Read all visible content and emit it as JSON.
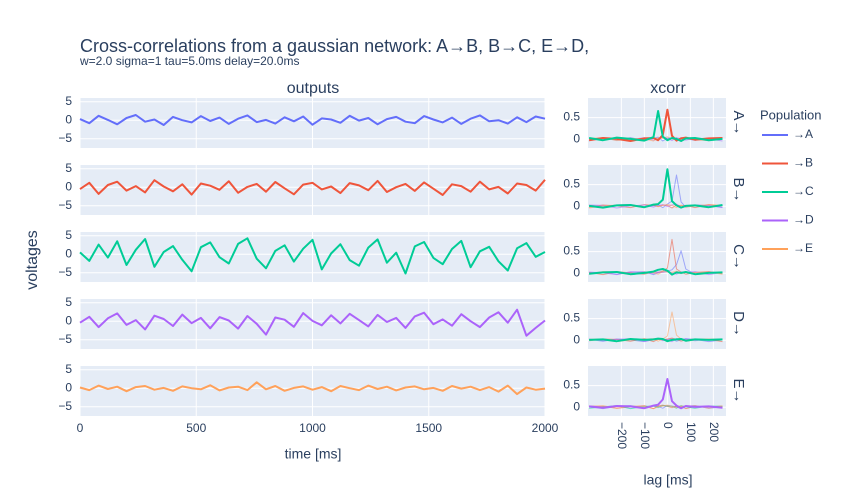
{
  "title": "Cross-correlations from a gaussian network: A→B, B→C, E→D,",
  "subtitle": "w=2.0 sigma=1 tau=5.0ms delay=20.0ms",
  "chart_data": [
    {
      "type": "line",
      "title": "outputs",
      "xlabel": "time [ms]",
      "ylabel": "voltages",
      "legend_title": "Population",
      "x": [
        0,
        40,
        80,
        120,
        160,
        200,
        240,
        280,
        320,
        360,
        400,
        440,
        480,
        520,
        560,
        600,
        640,
        680,
        720,
        760,
        800,
        840,
        880,
        920,
        960,
        1000,
        1040,
        1080,
        1120,
        1160,
        1200,
        1240,
        1280,
        1320,
        1360,
        1400,
        1440,
        1480,
        1520,
        1560,
        1600,
        1640,
        1680,
        1720,
        1760,
        1800,
        1840,
        1880,
        1920,
        1960,
        2000
      ],
      "xlim": [
        0,
        2000
      ],
      "xticks": [
        0,
        500,
        1000,
        1500,
        2000
      ],
      "ylim": [
        -7.5,
        6
      ],
      "yticks": [
        5,
        0,
        {
          "value": -5,
          "label": "−5"
        }
      ],
      "grid": true,
      "series": [
        {
          "name": "→A",
          "color": "#636efa",
          "values": [
            0.3,
            -0.8,
            1.2,
            0.1,
            -1.1,
            0.6,
            1.4,
            -0.4,
            0.2,
            -1.3,
            0.9,
            0.0,
            -0.6,
            1.1,
            -0.2,
            0.7,
            -1.0,
            0.4,
            1.3,
            -0.5,
            0.1,
            -0.9,
            0.8,
            -0.3,
            1.0,
            -1.2,
            0.5,
            0.2,
            -0.7,
            1.2,
            -0.1,
            0.6,
            -1.1,
            0.3,
            0.9,
            -0.4,
            -0.8,
            1.1,
            0.2,
            -0.6,
            0.7,
            -1.0,
            0.4,
            1.3,
            -0.3,
            0.0,
            -0.9,
            0.8,
            -0.5,
            1.0,
            0.4
          ]
        },
        {
          "name": "→B",
          "color": "#ef553b",
          "values": [
            -0.5,
            1.2,
            -1.8,
            0.6,
            1.5,
            -0.9,
            0.3,
            -1.4,
            1.9,
            0.2,
            -1.1,
            0.8,
            -2.0,
            1.0,
            0.4,
            -0.7,
            1.6,
            -1.5,
            0.1,
            0.9,
            -1.2,
            1.4,
            -0.3,
            -1.9,
            0.7,
            1.2,
            -0.6,
            0.2,
            -1.6,
            1.1,
            0.5,
            -0.8,
            1.7,
            -1.3,
            0.0,
            0.9,
            -1.0,
            1.3,
            -0.4,
            -2.1,
            0.8,
            0.3,
            -1.2,
            1.5,
            -0.6,
            0.1,
            -1.7,
            1.0,
            0.6,
            -0.9,
            2.0
          ]
        },
        {
          "name": "→C",
          "color": "#00cc96",
          "values": [
            0.5,
            -1.8,
            2.6,
            -0.9,
            3.5,
            -2.9,
            1.2,
            4.1,
            -3.4,
            0.6,
            2.2,
            -1.5,
            -4.6,
            1.9,
            3.2,
            -0.8,
            -2.5,
            2.8,
            4.3,
            -1.2,
            -3.8,
            0.9,
            2.4,
            -2.0,
            1.5,
            3.9,
            -4.1,
            0.2,
            2.7,
            -1.6,
            -3.1,
            1.8,
            4.0,
            -2.3,
            0.4,
            -5.2,
            2.1,
            3.3,
            -1.0,
            -2.7,
            1.4,
            3.6,
            -3.5,
            0.8,
            2.0,
            -1.9,
            -4.4,
            1.6,
            3.0,
            -0.7,
            0.6
          ]
        },
        {
          "name": "→D",
          "color": "#ab63fa",
          "values": [
            -0.4,
            1.2,
            -1.6,
            0.8,
            2.1,
            -1.0,
            0.3,
            -2.2,
            1.5,
            0.6,
            -1.3,
            1.8,
            -0.5,
            0.9,
            -1.9,
            1.1,
            0.2,
            -2.0,
            1.4,
            -0.7,
            -3.6,
            1.0,
            0.4,
            -1.5,
            2.2,
            0.1,
            -1.1,
            1.6,
            -0.6,
            2.0,
            0.3,
            -1.4,
            1.7,
            -0.2,
            0.9,
            -1.8,
            1.3,
            2.3,
            -0.8,
            0.5,
            -1.2,
            1.9,
            0.0,
            -1.6,
            1.0,
            2.4,
            -0.4,
            3.1,
            -3.9,
            -1.8,
            0.2
          ]
        },
        {
          "name": "→E",
          "color": "#ffa15a",
          "values": [
            0.2,
            -0.5,
            0.7,
            -0.2,
            0.4,
            -0.8,
            0.3,
            0.6,
            -0.4,
            0.1,
            -0.7,
            0.5,
            0.0,
            -0.3,
            0.8,
            -0.6,
            0.2,
            0.4,
            -0.5,
            1.6,
            -0.3,
            0.6,
            -0.7,
            0.1,
            0.5,
            -0.4,
            0.3,
            -0.8,
            0.6,
            0.0,
            -0.5,
            0.7,
            -0.2,
            0.4,
            -0.6,
            0.2,
            0.5,
            -0.3,
            0.1,
            -0.7,
            0.6,
            -0.1,
            0.4,
            -0.5,
            0.3,
            -0.9,
            0.7,
            -1.6,
            0.2,
            -0.4,
            -0.1
          ]
        }
      ]
    },
    {
      "type": "line",
      "title": "xcorr",
      "xlabel": "lag [ms]",
      "x": [
        -340,
        -280,
        -220,
        -160,
        -100,
        -60,
        -40,
        -20,
        0,
        20,
        40,
        60,
        80,
        120,
        180,
        240
      ],
      "xlim": [
        -345,
        255
      ],
      "xticks": [
        {
          "value": -200,
          "label": "−200"
        },
        {
          "value": -100,
          "label": "−100"
        },
        0,
        100,
        200
      ],
      "ylim": [
        -0.2,
        0.95
      ],
      "yticks": [
        0,
        0.5
      ],
      "grid": true,
      "panels": [
        {
          "label": "A→",
          "series": [
            {
              "values": [
                0.01,
                0.03,
                -0.02,
                0.04,
                -0.03,
                0.02,
                0.05,
                -0.04,
                0.03,
                0.02,
                -0.03,
                0.04,
                0.01,
                -0.02,
                0.03,
                0.02
              ]
            },
            {
              "bold": true,
              "values": [
                -0.02,
                0.03,
                0.01,
                -0.04,
                0.02,
                0.03,
                -0.02,
                0.1,
                0.68,
                0.08,
                -0.03,
                0.02,
                0.04,
                -0.01,
                0.02,
                0.03
              ]
            },
            {
              "bold": true,
              "values": [
                0.03,
                -0.02,
                0.04,
                0.01,
                -0.03,
                0.05,
                0.65,
                0.06,
                -0.02,
                0.03,
                0.01,
                -0.04,
                0.02,
                0.03,
                -0.02,
                0.01
              ]
            },
            {
              "values": [
                -0.03,
                0.02,
                0.03,
                -0.01,
                0.04,
                -0.02,
                0.01,
                0.05,
                0.02,
                -0.03,
                0.04,
                0.01,
                -0.02,
                0.03,
                0.01,
                -0.04
              ]
            },
            {
              "values": [
                0.02,
                0.04,
                -0.03,
                0.02,
                0.01,
                -0.04,
                0.03,
                0.02,
                0.06,
                0.01,
                -0.02,
                0.03,
                0.04,
                -0.01,
                -0.03,
                0.02
              ]
            }
          ]
        },
        {
          "label": "B→",
          "series": [
            {
              "values": [
                0.02,
                -0.01,
                0.03,
                0.04,
                -0.02,
                0.01,
                0.03,
                -0.03,
                0.05,
                0.12,
                0.72,
                0.1,
                -0.02,
                0.03,
                0.01,
                -0.02
              ]
            },
            {
              "values": [
                -0.02,
                0.03,
                0.01,
                -0.03,
                0.04,
                0.02,
                -0.01,
                0.03,
                0.02,
                -0.04,
                0.03,
                0.01,
                0.02,
                -0.03,
                0.04,
                0.01
              ]
            },
            {
              "bold": true,
              "values": [
                0.01,
                -0.03,
                0.02,
                0.03,
                -0.02,
                0.04,
                0.05,
                0.15,
                0.85,
                0.12,
                0.02,
                -0.03,
                0.01,
                0.02,
                -0.02,
                0.03
              ]
            },
            {
              "values": [
                0.03,
                0.02,
                -0.04,
                0.01,
                0.03,
                -0.02,
                0.02,
                0.04,
                -0.01,
                0.03,
                0.05,
                -0.02,
                0.01,
                0.03,
                0.02,
                -0.03
              ]
            },
            {
              "values": [
                -0.04,
                0.01,
                0.03,
                0.02,
                -0.03,
                0.05,
                -0.01,
                0.02,
                0.04,
                0.02,
                -0.03,
                0.03,
                -0.02,
                0.01,
                0.04,
                0.02
              ]
            }
          ]
        },
        {
          "label": "C→",
          "series": [
            {
              "values": [
                0.01,
                0.03,
                -0.02,
                0.02,
                0.04,
                -0.03,
                0.01,
                0.03,
                0.05,
                0.08,
                0.2,
                0.52,
                0.1,
                -0.02,
                0.03,
                0.01
              ]
            },
            {
              "values": [
                0.02,
                -0.03,
                0.04,
                0.01,
                -0.02,
                0.03,
                0.02,
                0.05,
                0.12,
                0.78,
                0.1,
                0.03,
                -0.02,
                0.02,
                0.04,
                -0.01
              ]
            },
            {
              "bold": true,
              "values": [
                -0.01,
                0.02,
                0.03,
                -0.02,
                0.01,
                0.04,
                0.08,
                0.1,
                0.06,
                -0.03,
                0.02,
                0.01,
                0.03,
                -0.02,
                0.01,
                0.02
              ]
            },
            {
              "values": [
                0.03,
                0.01,
                -0.03,
                0.04,
                0.02,
                -0.01,
                0.03,
                0.02,
                0.04,
                0.01,
                -0.02,
                0.03,
                0.02,
                0.04,
                -0.03,
                0.02
              ]
            },
            {
              "values": [
                -0.02,
                0.04,
                0.02,
                -0.03,
                0.03,
                0.01,
                -0.02,
                0.04,
                0.03,
                0.02,
                0.05,
                -0.01,
                0.02,
                0.01,
                0.03,
                -0.02
              ]
            }
          ]
        },
        {
          "label": "D→",
          "series": [
            {
              "values": [
                0.02,
                -0.02,
                0.03,
                0.01,
                -0.03,
                0.02,
                0.04,
                -0.01,
                0.02,
                0.03,
                -0.02,
                0.01,
                0.04,
                0.02,
                -0.03,
                0.01
              ]
            },
            {
              "values": [
                -0.01,
                0.03,
                0.02,
                -0.02,
                0.04,
                -0.03,
                0.02,
                0.01,
                0.03,
                0.05,
                0.02,
                -0.02,
                0.01,
                0.03,
                0.02,
                -0.03
              ]
            },
            {
              "bold": true,
              "values": [
                0.01,
                0.02,
                -0.02,
                0.03,
                0.01,
                0.02,
                0.04,
                0.03,
                -0.02,
                0.01,
                0.02,
                0.03,
                -0.01,
                0.02,
                0.01,
                0.02
              ]
            },
            {
              "values": [
                0.03,
                -0.01,
                0.02,
                0.04,
                -0.02,
                0.01,
                0.03,
                0.02,
                0.01,
                -0.03,
                0.04,
                0.02,
                0.03,
                -0.01,
                0.02,
                0.03
              ]
            },
            {
              "values": [
                0.02,
                0.03,
                -0.03,
                0.01,
                0.02,
                0.04,
                -0.02,
                0.03,
                0.1,
                0.65,
                0.12,
                0.03,
                -0.02,
                0.01,
                0.03,
                0.02
              ]
            }
          ]
        },
        {
          "label": "E→",
          "series": [
            {
              "values": [
                0.01,
                -0.03,
                0.02,
                0.04,
                -0.01,
                0.03,
                0.02,
                -0.02,
                0.04,
                0.03,
                0.01,
                -0.03,
                0.02,
                0.04,
                -0.02,
                0.01
              ]
            },
            {
              "values": [
                0.03,
                0.02,
                -0.02,
                0.01,
                0.04,
                -0.03,
                0.03,
                0.05,
                0.02,
                -0.01,
                0.03,
                0.02,
                -0.03,
                0.02,
                0.01,
                0.03
              ]
            },
            {
              "values": [
                -0.02,
                0.01,
                0.04,
                -0.03,
                0.02,
                0.03,
                -0.01,
                0.04,
                0.03,
                0.02,
                -0.02,
                0.04,
                0.01,
                -0.02,
                0.03,
                0.02
              ]
            },
            {
              "bold": true,
              "values": [
                0.02,
                -0.01,
                0.03,
                0.02,
                -0.02,
                0.04,
                0.06,
                0.18,
                0.65,
                0.14,
                0.04,
                -0.02,
                0.03,
                0.01,
                0.02,
                -0.01
              ]
            },
            {
              "values": [
                0.01,
                0.04,
                -0.02,
                0.03,
                0.02,
                -0.03,
                0.01,
                0.03,
                0.05,
                0.02,
                -0.01,
                0.03,
                0.02,
                0.04,
                -0.02,
                0.03
              ]
            }
          ]
        }
      ]
    }
  ]
}
